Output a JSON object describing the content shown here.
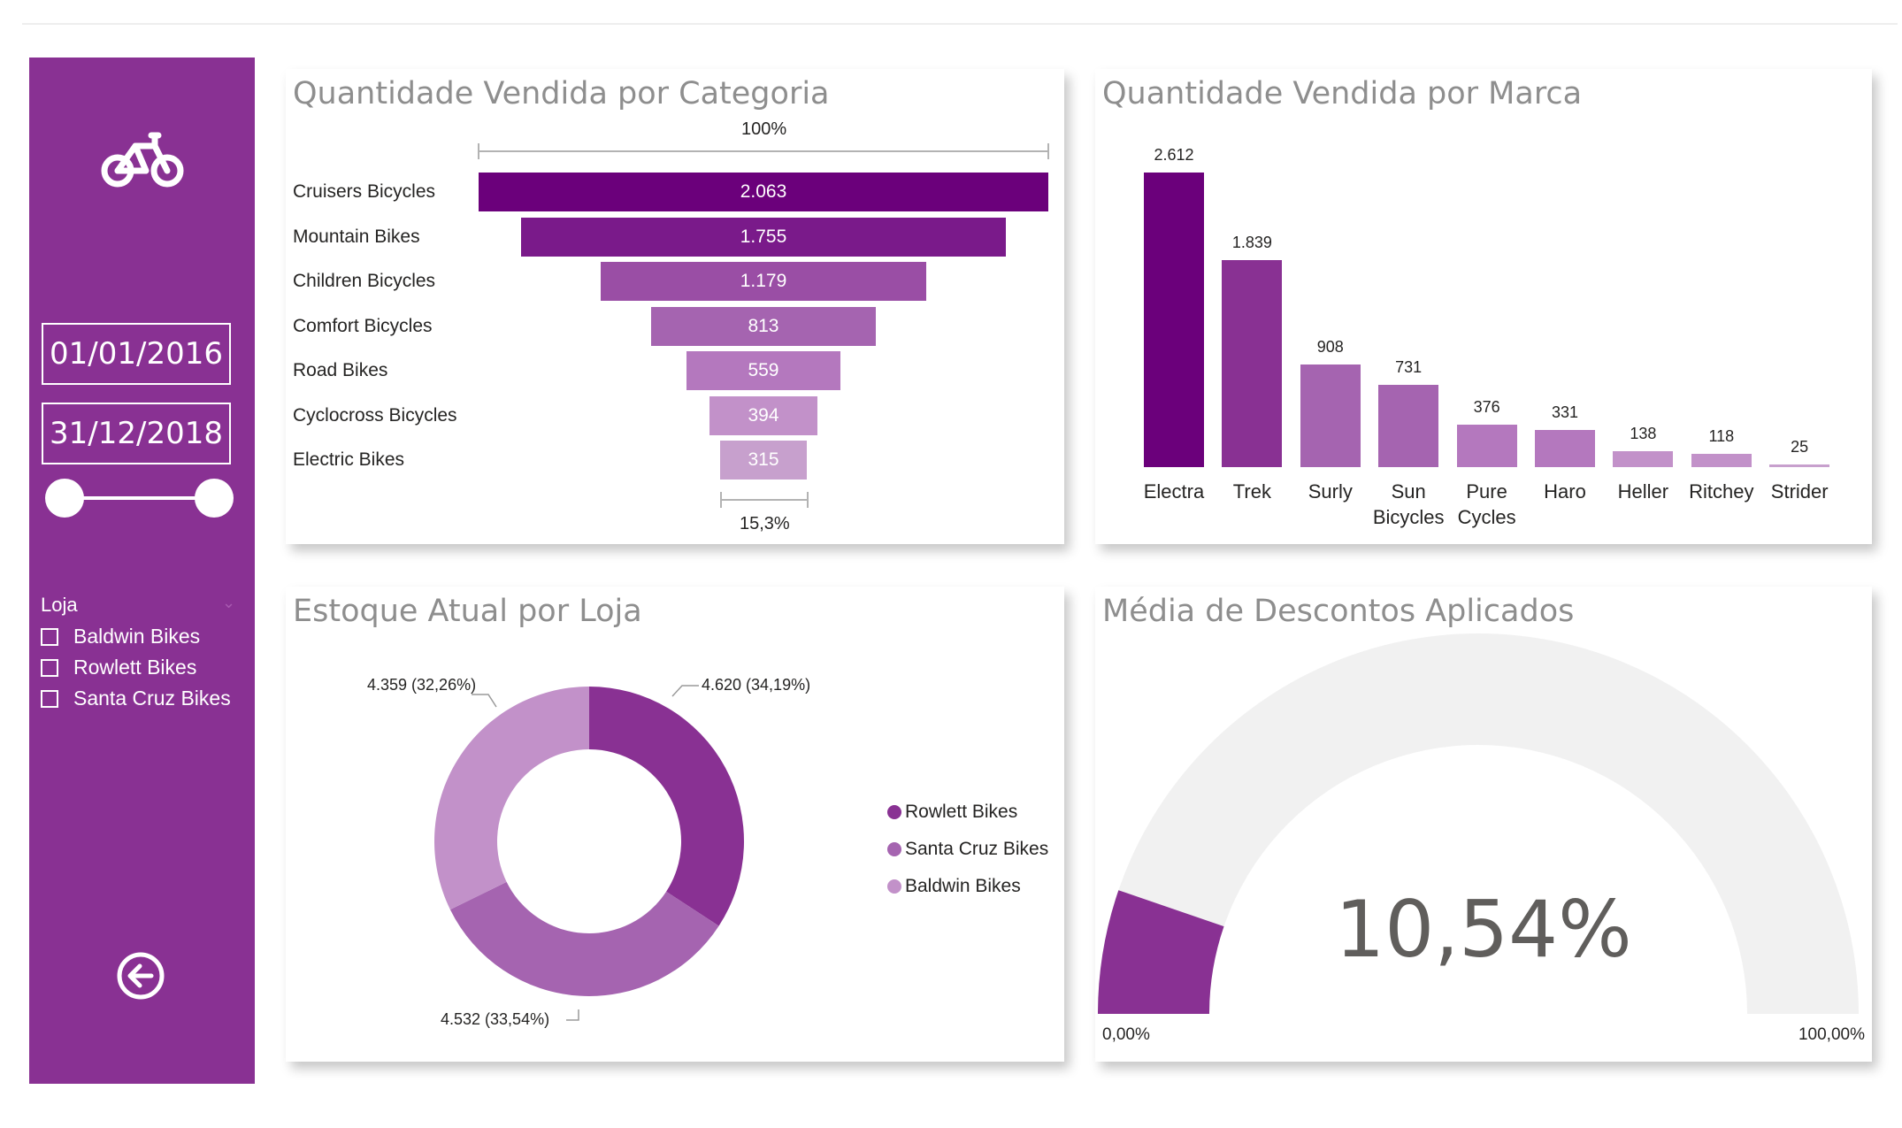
{
  "sidebar": {
    "icon": "bicycle-icon",
    "date_start": "01/01/2016",
    "date_end": "31/12/2018",
    "loja_title": "Loja",
    "loja_items": [
      "Baldwin Bikes",
      "Rowlett Bikes",
      "Santa Cruz Bikes"
    ],
    "back_icon": "back-arrow-icon"
  },
  "panels": {
    "categoria": {
      "title": "Quantidade Vendida por Categoria",
      "top_pct": "100%",
      "bottom_pct": "15,3%"
    },
    "marca": {
      "title": "Quantidade Vendida por Marca"
    },
    "estoque": {
      "title": "Estoque Atual por Loja"
    },
    "descontos": {
      "title": "Média de Descontos Aplicados"
    }
  },
  "colors": {
    "sidebar": "#893193",
    "shades": [
      "#6b007b",
      "#7a1a8a",
      "#9a4ea5",
      "#a564b0",
      "#b478be",
      "#c291c9",
      "#c7a0cd"
    ]
  },
  "chart_data": [
    {
      "type": "funnel",
      "title": "Quantidade Vendida por Categoria",
      "categories": [
        "Cruisers Bicycles",
        "Mountain Bikes",
        "Children Bicycles",
        "Comfort Bicycles",
        "Road Bikes",
        "Cyclocross Bicycles",
        "Electric Bikes"
      ],
      "values": [
        2063,
        1755,
        1179,
        813,
        559,
        394,
        315
      ],
      "value_labels": [
        "2.063",
        "1.755",
        "1.179",
        "813",
        "559",
        "394",
        "315"
      ],
      "top_label": "100%",
      "bottom_label": "15,3%"
    },
    {
      "type": "bar",
      "title": "Quantidade Vendida por Marca",
      "categories": [
        "Electra",
        "Trek",
        "Surly",
        "Sun Bicycles",
        "Pure Cycles",
        "Haro",
        "Heller",
        "Ritchey",
        "Strider"
      ],
      "values": [
        2612,
        1839,
        908,
        731,
        376,
        331,
        138,
        118,
        25
      ],
      "value_labels": [
        "2.612",
        "1.839",
        "908",
        "731",
        "376",
        "331",
        "138",
        "118",
        "25"
      ]
    },
    {
      "type": "pie",
      "title": "Estoque Atual por Loja",
      "labels": [
        "Rowlett Bikes",
        "Santa Cruz Bikes",
        "Baldwin Bikes"
      ],
      "values": [
        4620,
        4532,
        4359
      ],
      "value_labels": [
        "4.620 (34,19%)",
        "4.532 (33,54%)",
        "4.359 (32,26%)"
      ]
    },
    {
      "type": "gauge",
      "title": "Média de Descontos Aplicados",
      "value": 10.54,
      "value_label": "10,54%",
      "min": 0,
      "max": 100,
      "min_label": "0,00%",
      "max_label": "100,00%"
    }
  ]
}
